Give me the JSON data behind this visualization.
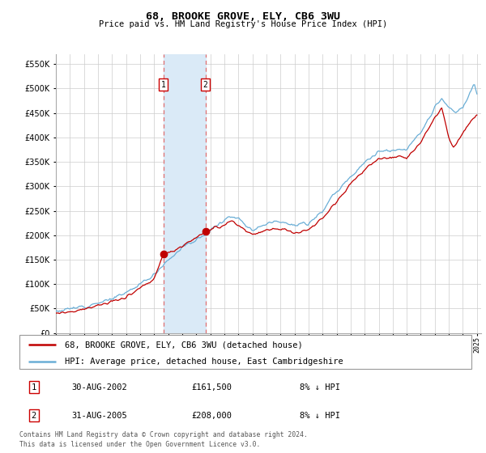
{
  "title": "68, BROOKE GROVE, ELY, CB6 3WU",
  "subtitle": "Price paid vs. HM Land Registry's House Price Index (HPI)",
  "yticks": [
    0,
    50000,
    100000,
    150000,
    200000,
    250000,
    300000,
    350000,
    400000,
    450000,
    500000,
    550000
  ],
  "ylim": [
    0,
    570000
  ],
  "xlim_start": 1995.0,
  "xlim_end": 2025.3,
  "sale1_date": 2002.66,
  "sale1_price": 161500,
  "sale2_date": 2005.66,
  "sale2_price": 208000,
  "legend_line1": "68, BROOKE GROVE, ELY, CB6 3WU (detached house)",
  "legend_line2": "HPI: Average price, detached house, East Cambridgeshire",
  "table_row1": [
    "1",
    "30-AUG-2002",
    "£161,500",
    "8% ↓ HPI"
  ],
  "table_row2": [
    "2",
    "31-AUG-2005",
    "£208,000",
    "8% ↓ HPI"
  ],
  "footer1": "Contains HM Land Registry data © Crown copyright and database right 2024.",
  "footer2": "This data is licensed under the Open Government Licence v3.0.",
  "hpi_color": "#6aaed6",
  "price_color": "#c00000",
  "shaded_color": "#daeaf7",
  "dashed_color": "#e07070",
  "grid_color": "#cccccc",
  "bg_color": "#ffffff",
  "hpi_anchors": [
    [
      1995.0,
      45000
    ],
    [
      1996.0,
      49000
    ],
    [
      1997.0,
      55000
    ],
    [
      1998.0,
      62000
    ],
    [
      1999.0,
      70000
    ],
    [
      2000.0,
      82000
    ],
    [
      2001.0,
      100000
    ],
    [
      2002.0,
      120000
    ],
    [
      2003.0,
      150000
    ],
    [
      2004.0,
      175000
    ],
    [
      2005.0,
      190000
    ],
    [
      2006.0,
      210000
    ],
    [
      2007.0,
      230000
    ],
    [
      2007.5,
      240000
    ],
    [
      2008.0,
      235000
    ],
    [
      2009.0,
      210000
    ],
    [
      2010.0,
      225000
    ],
    [
      2011.0,
      230000
    ],
    [
      2012.0,
      220000
    ],
    [
      2013.0,
      225000
    ],
    [
      2014.0,
      250000
    ],
    [
      2015.0,
      290000
    ],
    [
      2016.0,
      320000
    ],
    [
      2017.0,
      350000
    ],
    [
      2018.0,
      370000
    ],
    [
      2019.0,
      375000
    ],
    [
      2020.0,
      375000
    ],
    [
      2021.0,
      410000
    ],
    [
      2022.0,
      460000
    ],
    [
      2022.5,
      480000
    ],
    [
      2023.0,
      460000
    ],
    [
      2023.5,
      450000
    ],
    [
      2024.0,
      460000
    ],
    [
      2024.5,
      490000
    ],
    [
      2024.8,
      510000
    ],
    [
      2025.0,
      490000
    ]
  ],
  "price_anchors": [
    [
      1995.0,
      40000
    ],
    [
      1996.0,
      44000
    ],
    [
      1997.0,
      49000
    ],
    [
      1998.0,
      56000
    ],
    [
      1999.0,
      63000
    ],
    [
      2000.0,
      74000
    ],
    [
      2001.0,
      92000
    ],
    [
      2002.0,
      110000
    ],
    [
      2002.66,
      161500
    ],
    [
      2003.0,
      165000
    ],
    [
      2003.5,
      170000
    ],
    [
      2004.0,
      178000
    ],
    [
      2005.0,
      195000
    ],
    [
      2005.66,
      208000
    ],
    [
      2006.0,
      210000
    ],
    [
      2006.5,
      215000
    ],
    [
      2007.0,
      220000
    ],
    [
      2007.5,
      230000
    ],
    [
      2008.0,
      220000
    ],
    [
      2009.0,
      200000
    ],
    [
      2010.0,
      210000
    ],
    [
      2011.0,
      215000
    ],
    [
      2012.0,
      205000
    ],
    [
      2013.0,
      210000
    ],
    [
      2014.0,
      235000
    ],
    [
      2015.0,
      270000
    ],
    [
      2016.0,
      305000
    ],
    [
      2017.0,
      335000
    ],
    [
      2018.0,
      355000
    ],
    [
      2019.0,
      360000
    ],
    [
      2020.0,
      358000
    ],
    [
      2021.0,
      390000
    ],
    [
      2022.0,
      440000
    ],
    [
      2022.5,
      460000
    ],
    [
      2023.0,
      400000
    ],
    [
      2023.3,
      380000
    ],
    [
      2023.6,
      390000
    ],
    [
      2024.0,
      410000
    ],
    [
      2024.5,
      430000
    ],
    [
      2025.0,
      445000
    ]
  ]
}
